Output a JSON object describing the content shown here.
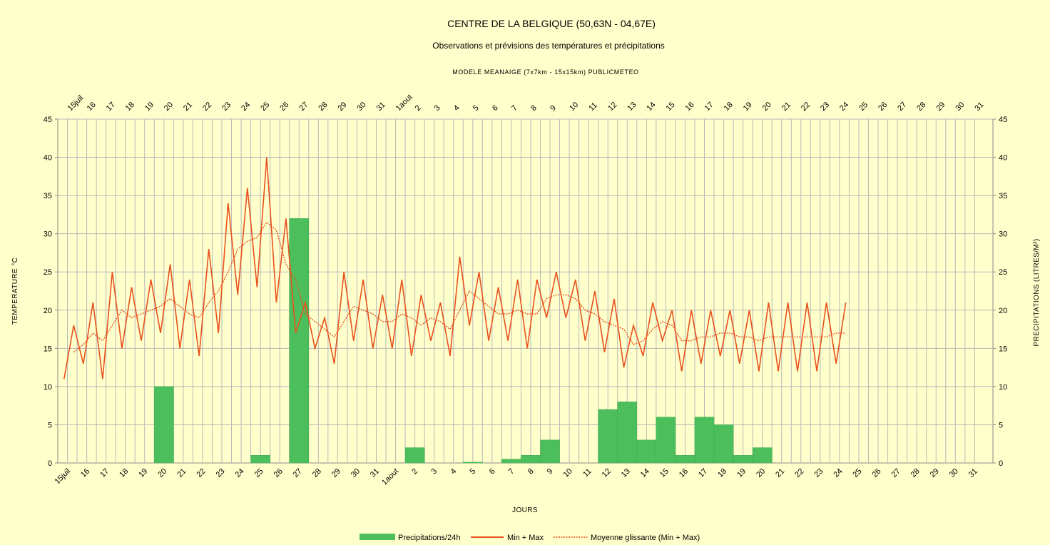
{
  "chart_data": {
    "type": "bar+line",
    "title": "CENTRE DE LA BELGIQUE (50,63N - 04,67E)",
    "subtitle": "Observations et prévisions des températures et précipitations",
    "model": "MODELE MEANAIGE (7x7km - 15x15km) PUBLICMETEO",
    "xlabel": "JOURS",
    "ylabel_left": "TEMPERATURE °C",
    "ylabel_right": "PRECIPITATIONS (LITRES/M²)",
    "ylim": [
      0,
      45
    ],
    "yticks": [
      0,
      5,
      10,
      15,
      20,
      25,
      30,
      35,
      40,
      45
    ],
    "day_labels": [
      "15juil",
      "16",
      "17",
      "18",
      "19",
      "20",
      "21",
      "22",
      "23",
      "24",
      "25",
      "26",
      "27",
      "28",
      "29",
      "30",
      "31",
      "1aout",
      "2",
      "3",
      "4",
      "5",
      "6",
      "7",
      "8",
      "9",
      "10",
      "11",
      "12",
      "13",
      "14",
      "15",
      "16",
      "17",
      "18",
      "19",
      "20",
      "21",
      "22",
      "23",
      "24",
      "25",
      "26",
      "27",
      "28",
      "29",
      "30",
      "31"
    ],
    "legend": [
      "Precipitations/24h",
      "Min + Max",
      "Moyenne glissante (Min + Max)"
    ],
    "legend_position": "bottom",
    "grid": true,
    "colors": {
      "precip": "#4cbf5c",
      "precip_edge": "#3da84d",
      "minmax": "#e8511e",
      "moyenne": "#e8511e",
      "grid": "#b8b8b8",
      "background": "#ffffcc"
    },
    "series": [
      {
        "name": "Min + Max",
        "note_units": "°C, two readings per day (min, max)",
        "values": [
          11,
          18,
          13,
          21,
          11,
          25,
          15,
          23,
          16,
          24,
          17,
          26,
          15,
          24,
          14,
          28,
          17,
          34,
          22,
          36,
          23,
          40,
          21,
          32,
          17,
          21,
          15,
          19,
          13,
          25,
          16,
          24,
          15,
          22,
          15,
          24,
          14,
          22,
          16,
          21,
          14,
          27,
          18,
          25,
          16,
          23,
          16,
          24,
          15,
          24,
          19,
          25,
          19,
          24,
          16,
          22.5,
          14.5,
          21.5,
          12.5,
          18,
          14,
          21,
          16,
          20,
          12,
          20,
          13,
          20,
          14,
          20,
          13,
          20,
          12,
          21,
          12,
          21,
          12,
          21,
          12,
          21,
          13,
          21
        ]
      },
      {
        "name": "Moyenne glissante (Min + Max)",
        "values": [
          null,
          14.5,
          15.5,
          17,
          16,
          18,
          20,
          19,
          19.5,
          20,
          20.5,
          21.5,
          20.5,
          19.5,
          19,
          21,
          22.5,
          25,
          28,
          29,
          29.5,
          31.5,
          30.5,
          26,
          24,
          19.5,
          18.5,
          17.5,
          16.5,
          18.5,
          20.5,
          20,
          19.5,
          18.5,
          18.5,
          19.5,
          19,
          18,
          19,
          18.5,
          17.5,
          20,
          22.5,
          21.5,
          20.5,
          19.5,
          19.5,
          20,
          19.5,
          19.5,
          21.5,
          22,
          22,
          21.5,
          20,
          19.5,
          18.5,
          18,
          17.5,
          15.5,
          16,
          17.5,
          18.5,
          18,
          16,
          16,
          16.5,
          16.5,
          17,
          17,
          16.5,
          16.5,
          16,
          16.5,
          16.5,
          16.5,
          16.5,
          16.5,
          16.5,
          16.5,
          17,
          17
        ]
      },
      {
        "name": "Precipitations/24h",
        "type": "bar",
        "values": [
          0,
          0,
          0,
          0,
          0,
          10,
          0,
          0,
          0,
          0,
          1,
          0,
          32,
          0,
          0,
          0,
          0,
          0,
          2,
          0,
          0,
          0.1,
          0,
          0.5,
          1,
          3,
          0,
          0,
          7,
          8,
          3,
          6,
          1,
          6,
          5,
          1,
          2,
          0,
          0,
          0,
          0,
          0,
          0,
          0,
          0,
          0,
          0,
          0
        ]
      }
    ]
  }
}
